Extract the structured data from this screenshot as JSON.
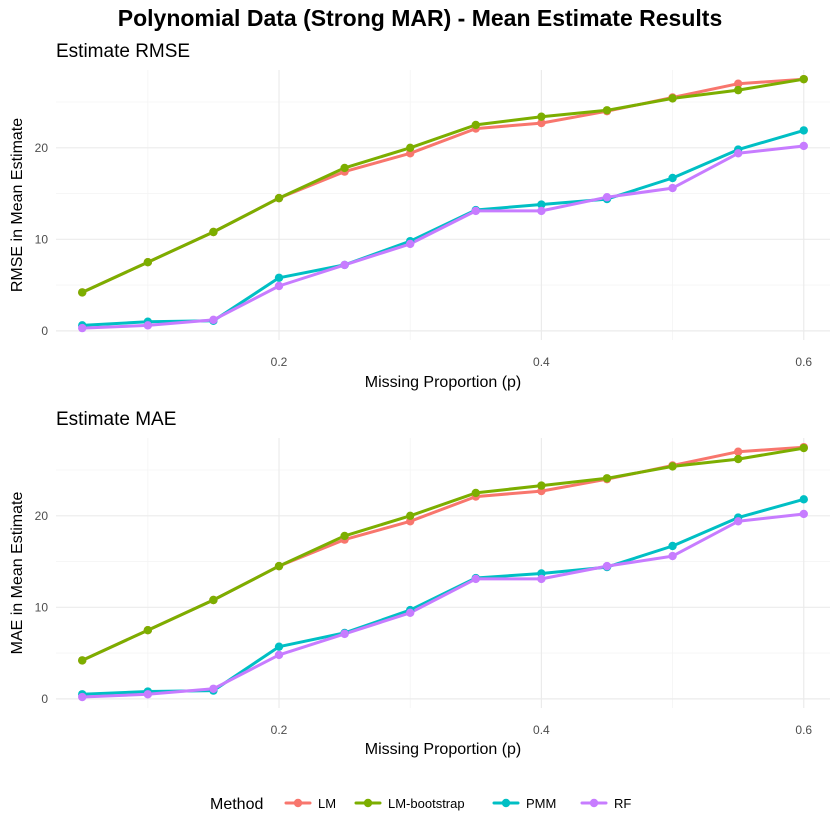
{
  "title": "Polynomial Data (Strong MAR) - Mean Estimate Results",
  "legend": {
    "title": "Method",
    "items": [
      {
        "name": "LM",
        "color": "#F8766D"
      },
      {
        "name": "LM-bootstrap",
        "color": "#7CAE00"
      },
      {
        "name": "PMM",
        "color": "#00BFC4"
      },
      {
        "name": "RF",
        "color": "#C77CFF"
      }
    ]
  },
  "chart_data": [
    {
      "type": "line",
      "title": "Estimate RMSE",
      "xlabel": "Missing Proportion (p)",
      "ylabel": "RMSE in Mean Estimate",
      "xlim": [
        0.03,
        0.62
      ],
      "ylim": [
        -1,
        28.5
      ],
      "xticks": [
        0.2,
        0.4,
        0.6
      ],
      "xtick_labels": [
        "0.2",
        "0.4",
        "0.6"
      ],
      "yticks": [
        0,
        10,
        20
      ],
      "ytick_labels": [
        "0",
        "10",
        "20"
      ],
      "grid": true,
      "x": [
        0.05,
        0.1,
        0.15,
        0.2,
        0.25,
        0.3,
        0.35,
        0.4,
        0.45,
        0.5,
        0.55,
        0.6
      ],
      "series": [
        {
          "name": "LM",
          "color": "#F8766D",
          "values": [
            4.2,
            7.5,
            10.8,
            14.5,
            17.4,
            19.4,
            22.1,
            22.7,
            24.0,
            25.5,
            27.0,
            27.5
          ]
        },
        {
          "name": "LM-bootstrap",
          "color": "#7CAE00",
          "values": [
            4.2,
            7.5,
            10.8,
            14.5,
            17.8,
            20.0,
            22.5,
            23.4,
            24.1,
            25.4,
            26.3,
            27.5
          ]
        },
        {
          "name": "PMM",
          "color": "#00BFC4",
          "values": [
            0.6,
            1.0,
            1.1,
            5.8,
            7.2,
            9.8,
            13.2,
            13.8,
            14.4,
            16.7,
            19.8,
            21.9
          ]
        },
        {
          "name": "RF",
          "color": "#C77CFF",
          "values": [
            0.3,
            0.6,
            1.2,
            4.9,
            7.2,
            9.5,
            13.1,
            13.1,
            14.6,
            15.6,
            19.4,
            20.2
          ]
        }
      ]
    },
    {
      "type": "line",
      "title": "Estimate MAE",
      "xlabel": "Missing Proportion (p)",
      "ylabel": "MAE in Mean Estimate",
      "xlim": [
        0.03,
        0.62
      ],
      "ylim": [
        -1,
        28.5
      ],
      "xticks": [
        0.2,
        0.4,
        0.6
      ],
      "xtick_labels": [
        "0.2",
        "0.4",
        "0.6"
      ],
      "yticks": [
        0,
        10,
        20
      ],
      "ytick_labels": [
        "0",
        "10",
        "20"
      ],
      "grid": true,
      "x": [
        0.05,
        0.1,
        0.15,
        0.2,
        0.25,
        0.3,
        0.35,
        0.4,
        0.45,
        0.5,
        0.55,
        0.6
      ],
      "series": [
        {
          "name": "LM",
          "color": "#F8766D",
          "values": [
            4.2,
            7.5,
            10.8,
            14.5,
            17.4,
            19.4,
            22.1,
            22.7,
            24.0,
            25.5,
            27.0,
            27.5
          ]
        },
        {
          "name": "LM-bootstrap",
          "color": "#7CAE00",
          "values": [
            4.2,
            7.5,
            10.8,
            14.5,
            17.8,
            20.0,
            22.5,
            23.3,
            24.1,
            25.4,
            26.2,
            27.4
          ]
        },
        {
          "name": "PMM",
          "color": "#00BFC4",
          "values": [
            0.5,
            0.8,
            0.9,
            5.7,
            7.2,
            9.7,
            13.2,
            13.7,
            14.4,
            16.7,
            19.8,
            21.8
          ]
        },
        {
          "name": "RF",
          "color": "#C77CFF",
          "values": [
            0.2,
            0.5,
            1.1,
            4.8,
            7.1,
            9.4,
            13.1,
            13.1,
            14.5,
            15.6,
            19.4,
            20.2
          ]
        }
      ]
    }
  ]
}
